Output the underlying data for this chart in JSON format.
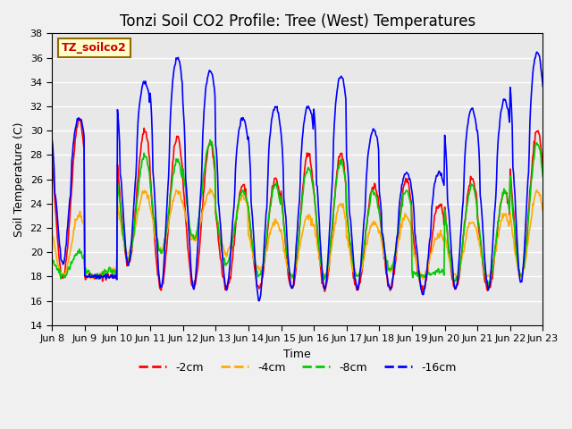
{
  "title": "Tonzi Soil CO2 Profile: Tree (West) Temperatures",
  "xlabel": "Time",
  "ylabel": "Soil Temperature (C)",
  "ylim": [
    14,
    38
  ],
  "yticks": [
    14,
    16,
    18,
    20,
    22,
    24,
    26,
    28,
    30,
    32,
    34,
    36,
    38
  ],
  "xtick_labels": [
    "Jun 8",
    "Jun 9",
    "Jun 10",
    "Jun 11",
    "Jun 12",
    "Jun 13",
    "Jun 14",
    "Jun 15",
    "Jun 16",
    "Jun 17",
    "Jun 18",
    "Jun 19",
    "Jun 20",
    "Jun 21",
    "Jun 22",
    "Jun 23"
  ],
  "label_box": "TZ_soilco2",
  "legend_labels": [
    "-2cm",
    "-4cm",
    "-8cm",
    "-16cm"
  ],
  "line_colors": [
    "#ff0000",
    "#ffaa00",
    "#00cc00",
    "#0000ff"
  ],
  "background_color": "#e8e8e8",
  "fig_bg_color": "#f0f0f0",
  "title_fontsize": 12,
  "axis_label_fontsize": 9,
  "tick_fontsize": 8,
  "linewidth": 1.2
}
